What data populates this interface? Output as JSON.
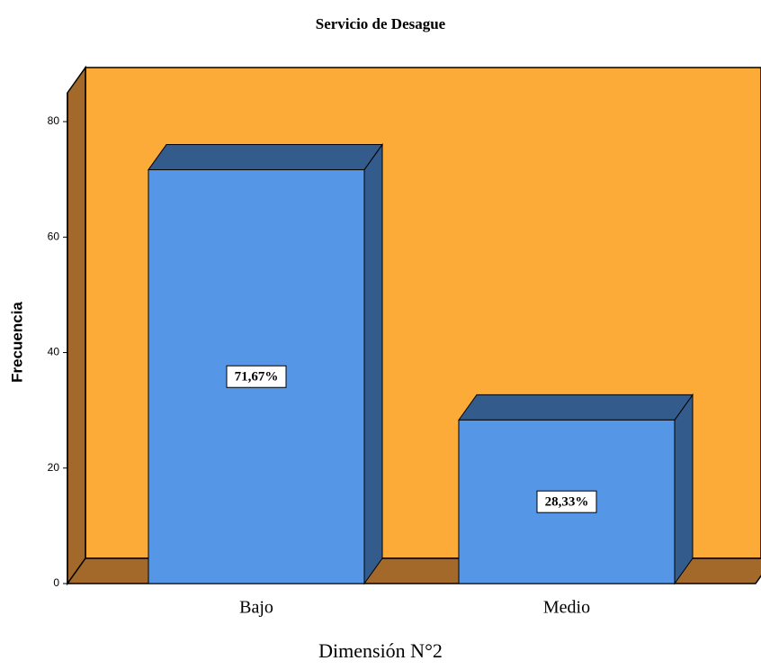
{
  "chart_data": {
    "type": "bar3d",
    "title": "Servicio de Desague",
    "x_label": "Dimensión N°2",
    "y_label": "Frecuencia",
    "categories": [
      "Bajo",
      "Medio"
    ],
    "values": [
      71.67,
      28.33
    ],
    "value_labels": [
      "71,67%",
      "28,33%"
    ],
    "color": "#5596e6",
    "ylim": [
      0,
      85
    ],
    "yticks": [
      0,
      20,
      40,
      60,
      80
    ]
  }
}
